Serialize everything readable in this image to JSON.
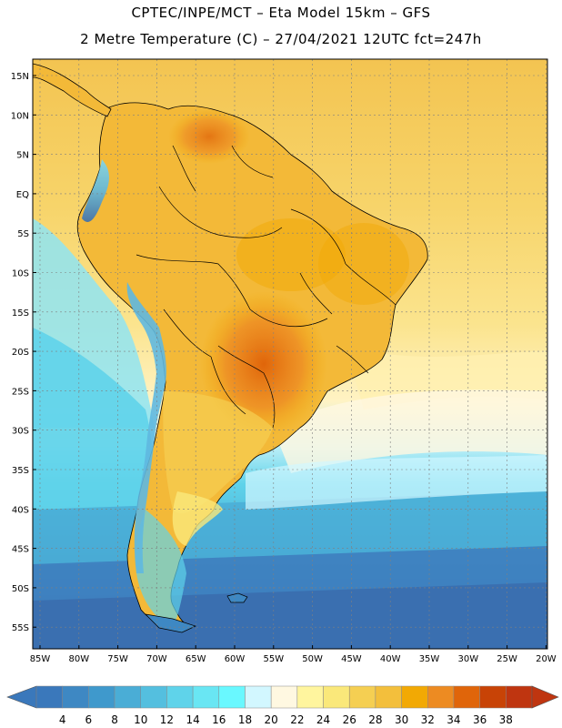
{
  "header": {
    "line1": "CPTEC/INPE/MCT –  Eta Model 15km – GFS",
    "line2": "2 Metre Temperature (C) – 27/04/2021 12UTC fct=247h"
  },
  "map": {
    "lat_labels": [
      "15N",
      "10N",
      "5N",
      "EQ",
      "5S",
      "10S",
      "15S",
      "20S",
      "25S",
      "30S",
      "35S",
      "40S",
      "45S",
      "50S",
      "55S"
    ],
    "lon_labels": [
      "85W",
      "80W",
      "75W",
      "70W",
      "65W",
      "60W",
      "55W",
      "50W",
      "45W",
      "40W",
      "35W",
      "30W",
      "25W",
      "20W"
    ]
  },
  "colorbar": {
    "labels": [
      "4",
      "6",
      "8",
      "10",
      "12",
      "14",
      "16",
      "18",
      "20",
      "22",
      "24",
      "26",
      "28",
      "30",
      "32",
      "34",
      "36",
      "38"
    ],
    "colors": [
      "#3a78bb",
      "#3e88c3",
      "#3f99cc",
      "#4aadd6",
      "#54bfdf",
      "#5fd3ea",
      "#69e6f3",
      "#69f8ff",
      "#d2f7ff",
      "#fff8e1",
      "#fff59e",
      "#fae87a",
      "#f5cf52",
      "#f3bf3c",
      "#f2a904",
      "#ed8b22",
      "#e0650a",
      "#c84306",
      "#bf3510"
    ],
    "under_color": "#3a78bb",
    "over_color": "#bf3510"
  },
  "colors": {
    "ocean_tropical": "#f5cf52",
    "ocean_subtropical": "#fff59e",
    "ocean_cool": "#5fd3ea",
    "ocean_cold": "#3e88c3",
    "land_hot": "#ed8b22"
  }
}
